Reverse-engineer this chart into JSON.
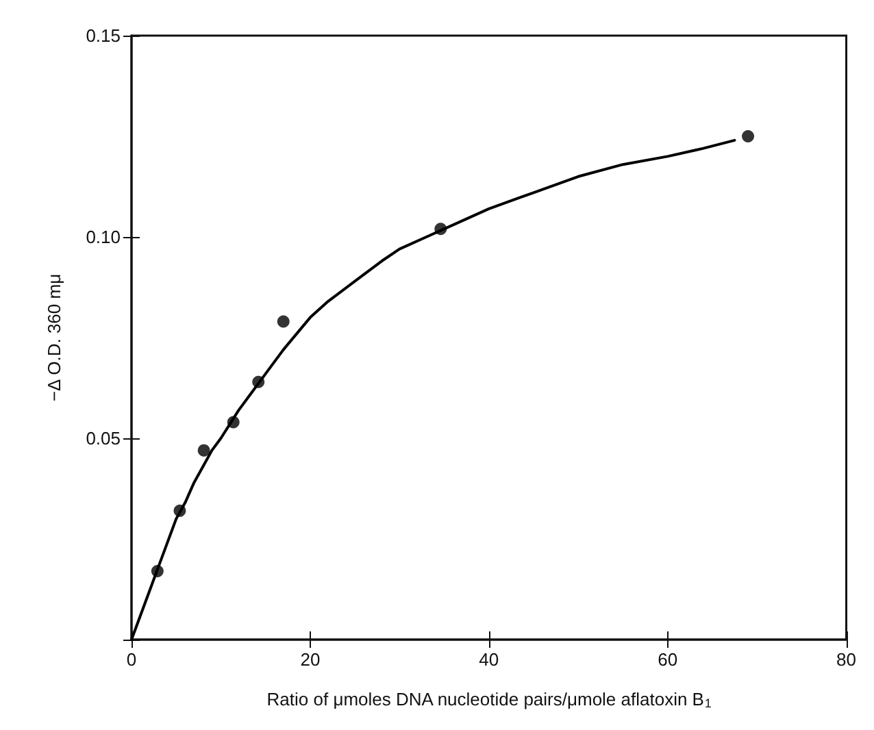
{
  "chart_data": {
    "type": "scatter",
    "xlabel": "Ratio of μmoles DNA nucleotide pairs/μmole aflatoxin B$_{1}$",
    "ylabel": "−Δ O.D. 360 mμ",
    "xlim": [
      0,
      80
    ],
    "xticks": [
      0,
      20,
      40,
      60,
      80
    ],
    "ylim": [
      0,
      0.15
    ],
    "yticks": [
      {
        "value": 0,
        "label": null
      },
      {
        "value": 0.05,
        "label": "0.05"
      },
      {
        "value": 0.1,
        "label": "0.10"
      },
      {
        "value": 0.15,
        "label": "0.15"
      }
    ],
    "grid": false,
    "series": [
      {
        "marker": "circle",
        "color": "#000000",
        "x": [
          2.9,
          5.4,
          8.1,
          11.4,
          14.2,
          17.0,
          34.6,
          69.0
        ],
        "values": [
          0.017,
          0.032,
          0.047,
          0.054,
          0.064,
          0.079,
          0.102,
          0.125
        ]
      },
      {
        "type": "line",
        "marker": "none",
        "line_style": "solid",
        "color": "#000000",
        "x": [
          0,
          1,
          2,
          3,
          4,
          5,
          6,
          7,
          8,
          9,
          10,
          12,
          14,
          15,
          17,
          20,
          22,
          25,
          28,
          30,
          33,
          36,
          40,
          45,
          50,
          55,
          60,
          64,
          67.5
        ],
        "values": [
          0,
          0.006,
          0.012,
          0.018,
          0.024,
          0.03,
          0.034,
          0.039,
          0.043,
          0.047,
          0.05,
          0.057,
          0.063,
          0.066,
          0.072,
          0.08,
          0.084,
          0.089,
          0.094,
          0.097,
          0.1,
          0.103,
          0.107,
          0.111,
          0.115,
          0.118,
          0.12,
          0.122,
          0.124
        ]
      }
    ]
  }
}
